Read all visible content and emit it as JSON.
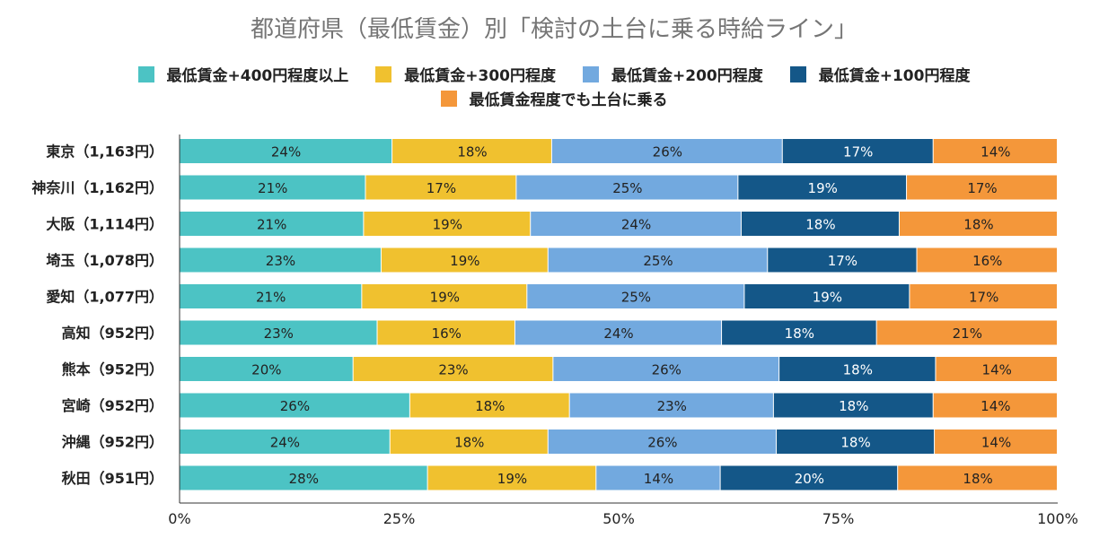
{
  "chart_data": {
    "type": "bar",
    "orientation": "horizontal",
    "stacked": "percent",
    "title": "都道府県（最低賃金）別「検討の土台に乗る時給ライン」",
    "categories": [
      "東京（1,163円）",
      "神奈川（1,162円）",
      "大阪（1,114円）",
      "埼玉（1,078円）",
      "愛知（1,077円）",
      "高知（952円）",
      "熊本（952円）",
      "宮崎（952円）",
      "沖縄（952円）",
      "秋田（951円）"
    ],
    "series": [
      {
        "name": "最低賃金+400円程度以上",
        "color": "#4cc3c4",
        "values": [
          24,
          21,
          21,
          23,
          21,
          23,
          20,
          26,
          24,
          28
        ],
        "labels": [
          "24%",
          "21%",
          "21%",
          "23%",
          "21%",
          "23%",
          "20%",
          "26%",
          "24%",
          "28%"
        ]
      },
      {
        "name": "最低賃金+300円程度",
        "color": "#f0c12f",
        "values": [
          18,
          17,
          19,
          19,
          19,
          16,
          23,
          18,
          18,
          19
        ],
        "labels": [
          "18%",
          "17%",
          "19%",
          "19%",
          "19%",
          "16%",
          "23%",
          "18%",
          "18%",
          "19%"
        ]
      },
      {
        "name": "最低賃金+200円程度",
        "color": "#72a9df",
        "values": [
          26,
          25,
          24,
          25,
          25,
          24,
          26,
          23,
          26,
          14
        ],
        "labels": [
          "26%",
          "25%",
          "24%",
          "25%",
          "25%",
          "24%",
          "26%",
          "23%",
          "26%",
          "14%"
        ]
      },
      {
        "name": "最低賃金+100円程度",
        "color": "#145788",
        "values": [
          17,
          19,
          18,
          17,
          19,
          18,
          18,
          18,
          18,
          20
        ],
        "labels": [
          "17%",
          "19%",
          "18%",
          "17%",
          "19%",
          "18%",
          "18%",
          "18%",
          "18%",
          "20%"
        ]
      },
      {
        "name": "最低賃金程度でも土台に乗る",
        "color": "#f4973a",
        "values": [
          14,
          17,
          18,
          16,
          17,
          21,
          14,
          14,
          14,
          18
        ],
        "labels": [
          "14%",
          "17%",
          "18%",
          "16%",
          "17%",
          "21%",
          "14%",
          "14%",
          "14%",
          "18%"
        ]
      }
    ],
    "xlim": [
      0,
      100
    ],
    "xticks": [
      "0%",
      "25%",
      "50%",
      "75%",
      "100%"
    ],
    "legend": "top-center",
    "grid": false
  }
}
